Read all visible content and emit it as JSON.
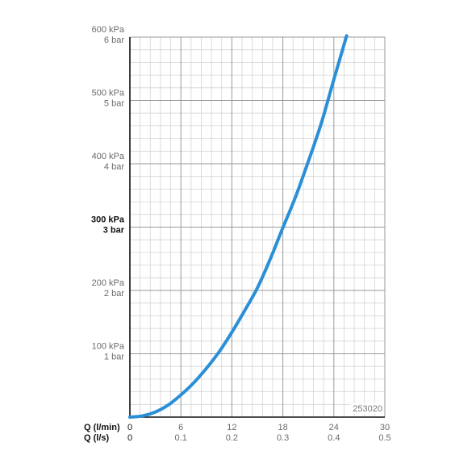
{
  "chart_data": {
    "type": "line",
    "code_label": "253020",
    "colors": {
      "curve": "#2a8fd6",
      "grid_major": "#9a9a9a",
      "grid_minor": "#d4d4d4",
      "axis": "#111111"
    },
    "x_axis_primary": {
      "label": "Q (l/min)",
      "range": [
        0,
        30
      ],
      "ticks": [
        "0",
        "6",
        "12",
        "18",
        "24",
        "30"
      ]
    },
    "x_axis_secondary": {
      "label": "Q (l/s)",
      "ticks": [
        "0",
        "0.1",
        "0.2",
        "0.3",
        "0.4",
        "0.5"
      ]
    },
    "y_axis": {
      "range": [
        0,
        600
      ],
      "unit": "kPa",
      "ticks": [
        {
          "value": 100,
          "kpa": "100 kPa",
          "bar": "1 bar",
          "bold": false
        },
        {
          "value": 200,
          "kpa": "200 kPa",
          "bar": "2 bar",
          "bold": false
        },
        {
          "value": 300,
          "kpa": "300 kPa",
          "bar": "3 bar",
          "bold": true
        },
        {
          "value": 400,
          "kpa": "400 kPa",
          "bar": "4 bar",
          "bold": false
        },
        {
          "value": 500,
          "kpa": "500 kPa",
          "bar": "5 bar",
          "bold": false
        },
        {
          "value": 600,
          "kpa": "600 kPa",
          "bar": "6 bar",
          "bold": false
        }
      ]
    },
    "grid": true,
    "series": [
      {
        "x": [
          0,
          1.5,
          3,
          4.5,
          6,
          7.5,
          9,
          10.5,
          12,
          13.5,
          15,
          16.5,
          18,
          19.5,
          21,
          22.5,
          24,
          25.5
        ],
        "y": [
          0,
          2,
          8,
          19,
          35,
          54,
          77,
          103,
          134,
          168,
          204,
          249,
          299,
          348,
          404,
          463,
          533,
          602
        ]
      }
    ]
  }
}
